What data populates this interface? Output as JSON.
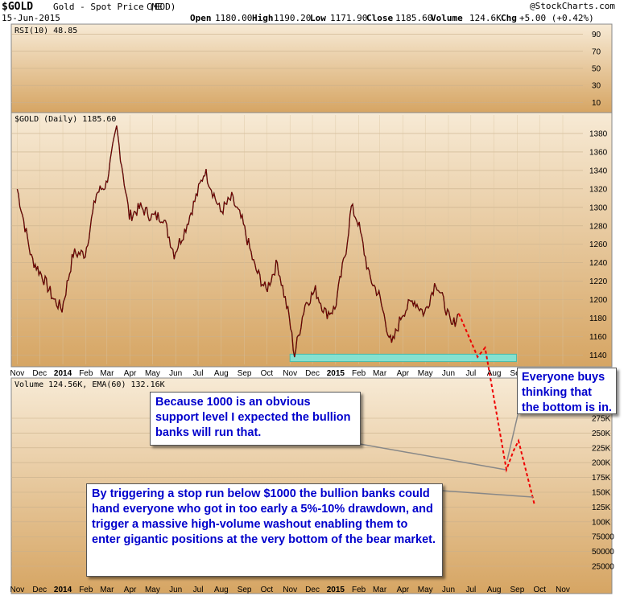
{
  "header": {
    "symbol": "$GOLD",
    "name": "Gold - Spot Price (EOD)",
    "exchange": "CME",
    "date": "15-Jun-2015",
    "open_label": "Open",
    "open": "1180.00",
    "high_label": "High",
    "high": "1190.20",
    "low_label": "Low",
    "low": "1171.90",
    "close_label": "Close",
    "close": "1185.60",
    "volume_label": "Volume",
    "volume": "124.6K",
    "chg_label": "Chg",
    "chg": "+5.00 (+0.42%)",
    "source": "@StockCharts.com"
  },
  "panels": {
    "rsi_label": "RSI(10) 48.85",
    "price_label": "$GOLD (Daily) 1185.60",
    "volume_label": "Volume 124.56K, EMA(60) 132.16K"
  },
  "annotations": {
    "box1": "Because 1000 is an obvious support level I expected the bullion banks will run that.",
    "box2": "Everyone buys thinking that the bottom is in.",
    "box3": "By triggering a stop run below $1000 the bullion banks could hand everyone who got in too early a 5%-10% drawdown, and trigger a massive high-volume washout enabling them to enter gigantic positions at the very bottom of the bear market."
  },
  "colors": {
    "panel_top": "#f7ead5",
    "panel_bottom": "#d6a563",
    "price_line": "#000000",
    "projection": "#ee0000",
    "support_zone": "#7de8dc",
    "callout_text": "#0000cc"
  },
  "chart_data": {
    "type": "line",
    "x_axis": {
      "months": [
        "Nov",
        "Dec",
        "2014",
        "Feb",
        "Mar",
        "Apr",
        "May",
        "Jun",
        "Jul",
        "Aug",
        "Sep",
        "Oct",
        "Nov",
        "Dec",
        "2015",
        "Feb",
        "Mar",
        "Apr",
        "May",
        "Jun",
        "Jul",
        "Aug",
        "Sep",
        "Oct",
        "Nov"
      ]
    },
    "rsi_axis": {
      "ticks": [
        90,
        70,
        50,
        30,
        10
      ],
      "ylim": [
        0,
        100
      ]
    },
    "price_axis": {
      "ticks": [
        1380,
        1360,
        1340,
        1320,
        1300,
        1280,
        1260,
        1240,
        1220,
        1200,
        1180,
        1160,
        1140
      ],
      "ylim": [
        1130,
        1400
      ]
    },
    "volume_axis": {
      "ticks": [
        "275K",
        "250K",
        "225K",
        "200K",
        "175K",
        "150K",
        "125K",
        "100K",
        "75000",
        "50000",
        "25000"
      ]
    },
    "price_series": {
      "name": "$GOLD (Daily)",
      "x": [
        "2013-11-01",
        "2013-11-20",
        "2013-12-05",
        "2013-12-20",
        "2013-12-31",
        "2014-01-15",
        "2014-01-31",
        "2014-02-15",
        "2014-02-28",
        "2014-03-14",
        "2014-03-31",
        "2014-04-15",
        "2014-04-30",
        "2014-05-15",
        "2014-05-30",
        "2014-06-13",
        "2014-06-30",
        "2014-07-10",
        "2014-07-31",
        "2014-08-15",
        "2014-08-29",
        "2014-09-15",
        "2014-09-30",
        "2014-10-15",
        "2014-10-31",
        "2014-11-07",
        "2014-11-21",
        "2014-12-05",
        "2014-12-19",
        "2014-12-31",
        "2015-01-15",
        "2015-01-22",
        "2015-01-31",
        "2015-02-15",
        "2015-02-28",
        "2015-03-17",
        "2015-03-31",
        "2015-04-15",
        "2015-04-30",
        "2015-05-15",
        "2015-05-29",
        "2015-06-05",
        "2015-06-15"
      ],
      "y": [
        1320,
        1245,
        1225,
        1200,
        1190,
        1250,
        1250,
        1315,
        1325,
        1385,
        1290,
        1300,
        1290,
        1290,
        1250,
        1275,
        1315,
        1340,
        1295,
        1310,
        1285,
        1235,
        1210,
        1240,
        1180,
        1140,
        1195,
        1210,
        1185,
        1190,
        1255,
        1300,
        1285,
        1225,
        1205,
        1150,
        1185,
        1200,
        1185,
        1220,
        1190,
        1170,
        1185
      ]
    },
    "projection_series": {
      "x": [
        "2015-06-15",
        "2015-07-10",
        "2015-07-20",
        "2015-07-28",
        "2015-08-12",
        "2015-08-21",
        "2015-09-12"
      ],
      "y": [
        1185,
        1138,
        1148,
        "below axis",
        "below axis",
        "below axis",
        "below axis"
      ]
    },
    "support_zone": {
      "y_range": [
        1133,
        1141
      ],
      "x_range": [
        "2014-11-01",
        "2015-08-31"
      ]
    }
  }
}
